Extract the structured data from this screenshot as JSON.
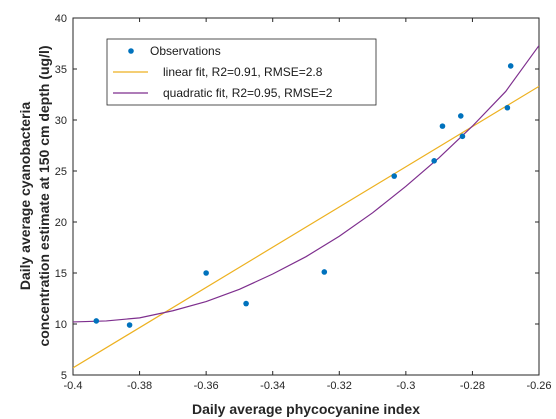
{
  "chart_data": {
    "type": "scatter",
    "xlabel": "Daily average phycocyanine index",
    "ylabel_lines": [
      "Daily average cyanobacteria",
      "concentration estimate at 150 cm depth (ug/l)"
    ],
    "xlim": [
      -0.4,
      -0.26
    ],
    "ylim": [
      5,
      40
    ],
    "xticks": [
      "-0.4",
      "-0.38",
      "-0.36",
      "-0.34",
      "-0.32",
      "-0.3",
      "-0.28",
      "-0.26"
    ],
    "yticks": [
      "5",
      "10",
      "15",
      "20",
      "25",
      "30",
      "35",
      "40"
    ],
    "grid": false,
    "legend_position": "top-left",
    "series": [
      {
        "name": "Observations",
        "kind": "points",
        "color": "#0072BD",
        "x": [
          -0.393,
          -0.383,
          -0.36,
          -0.348,
          -0.3245,
          -0.3035,
          -0.2915,
          -0.289,
          -0.2835,
          -0.283,
          -0.2695,
          -0.2685
        ],
        "y": [
          10.3,
          9.9,
          15.0,
          12.0,
          15.1,
          24.5,
          26.0,
          29.4,
          30.4,
          28.4,
          31.2,
          35.3
        ]
      },
      {
        "name": "linear fit, R2=0.91, RMSE=2.8",
        "kind": "line",
        "color": "#EDB120",
        "x": [
          -0.4,
          -0.26
        ],
        "y": [
          5.7,
          33.3
        ]
      },
      {
        "name": "quadratic fit, R2=0.95, RMSE=2",
        "kind": "curve",
        "color": "#7E2F8E",
        "x": [
          -0.4,
          -0.39,
          -0.38,
          -0.37,
          -0.36,
          -0.35,
          -0.34,
          -0.33,
          -0.32,
          -0.31,
          -0.3,
          -0.29,
          -0.28,
          -0.27,
          -0.26
        ],
        "y": [
          10.2,
          10.3,
          10.6,
          11.3,
          12.2,
          13.4,
          14.9,
          16.6,
          18.6,
          20.9,
          23.5,
          26.3,
          29.4,
          32.8,
          37.3
        ]
      }
    ]
  }
}
